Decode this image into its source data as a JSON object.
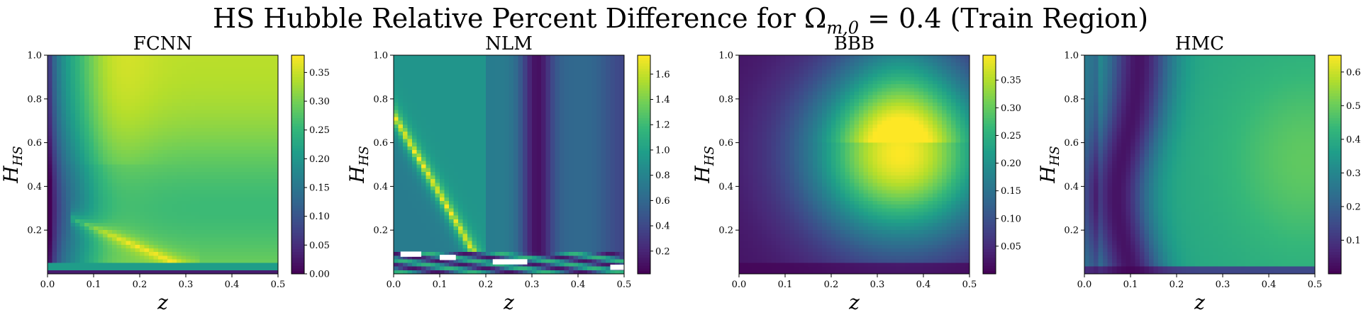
{
  "figure": {
    "title": "HS Hubble Relative Percent Difference for Ω",
    "title_sub": "m,0",
    "title_rest": " = 0.4 (Train Region)"
  },
  "chart_data": [
    {
      "type": "heatmap",
      "title": "FCNN",
      "xlabel": "z",
      "ylabel": "H",
      "ylabel_sub": "HS",
      "xlim": [
        0.0,
        0.5
      ],
      "ylim": [
        0.0,
        1.0
      ],
      "x_ticks": [
        "0.0",
        "0.1",
        "0.2",
        "0.3",
        "0.4",
        "0.5"
      ],
      "y_ticks": [
        "0.2",
        "0.4",
        "0.6",
        "0.8",
        "1.0"
      ],
      "colorbar_range": [
        0.0,
        0.38
      ],
      "colorbar_ticks": [
        "0.00",
        "0.05",
        "0.10",
        "0.15",
        "0.20",
        "0.25",
        "0.30",
        "0.35"
      ],
      "colormap": "viridis"
    },
    {
      "type": "heatmap",
      "title": "NLM",
      "xlabel": "z",
      "ylabel": "H",
      "ylabel_sub": "HS",
      "xlim": [
        0.0,
        0.5
      ],
      "ylim": [
        0.0,
        1.0
      ],
      "x_ticks": [
        "0.0",
        "0.1",
        "0.2",
        "0.3",
        "0.4",
        "0.5"
      ],
      "y_ticks": [
        "0.2",
        "0.4",
        "0.6",
        "0.8",
        "1.0"
      ],
      "colorbar_range": [
        0.02,
        1.75
      ],
      "colorbar_ticks": [
        "0.2",
        "0.4",
        "0.6",
        "0.8",
        "1.0",
        "1.2",
        "1.4",
        "1.6"
      ],
      "colormap": "viridis"
    },
    {
      "type": "heatmap",
      "title": "BBB",
      "xlabel": "z",
      "ylabel": "H",
      "ylabel_sub": "HS",
      "xlim": [
        0.0,
        0.5
      ],
      "ylim": [
        0.0,
        1.0
      ],
      "x_ticks": [
        "0.0",
        "0.1",
        "0.2",
        "0.3",
        "0.4",
        "0.5"
      ],
      "y_ticks": [
        "0.2",
        "0.4",
        "0.6",
        "0.8",
        "1.0"
      ],
      "colorbar_range": [
        0.0,
        0.395
      ],
      "colorbar_ticks": [
        "0.05",
        "0.10",
        "0.15",
        "0.20",
        "0.25",
        "0.30",
        "0.35"
      ],
      "colormap": "viridis"
    },
    {
      "type": "heatmap",
      "title": "HMC",
      "xlabel": "z",
      "ylabel": "H",
      "ylabel_sub": "HS",
      "xlim": [
        0.0,
        0.5
      ],
      "ylim": [
        0.0,
        1.0
      ],
      "x_ticks": [
        "0.0",
        "0.1",
        "0.2",
        "0.3",
        "0.4",
        "0.5"
      ],
      "y_ticks": [
        "0.2",
        "0.4",
        "0.6",
        "0.8",
        "1.0"
      ],
      "colorbar_range": [
        0.0,
        0.65
      ],
      "colorbar_ticks": [
        "0.1",
        "0.2",
        "0.3",
        "0.4",
        "0.5",
        "0.6"
      ],
      "colormap": "viridis"
    }
  ]
}
